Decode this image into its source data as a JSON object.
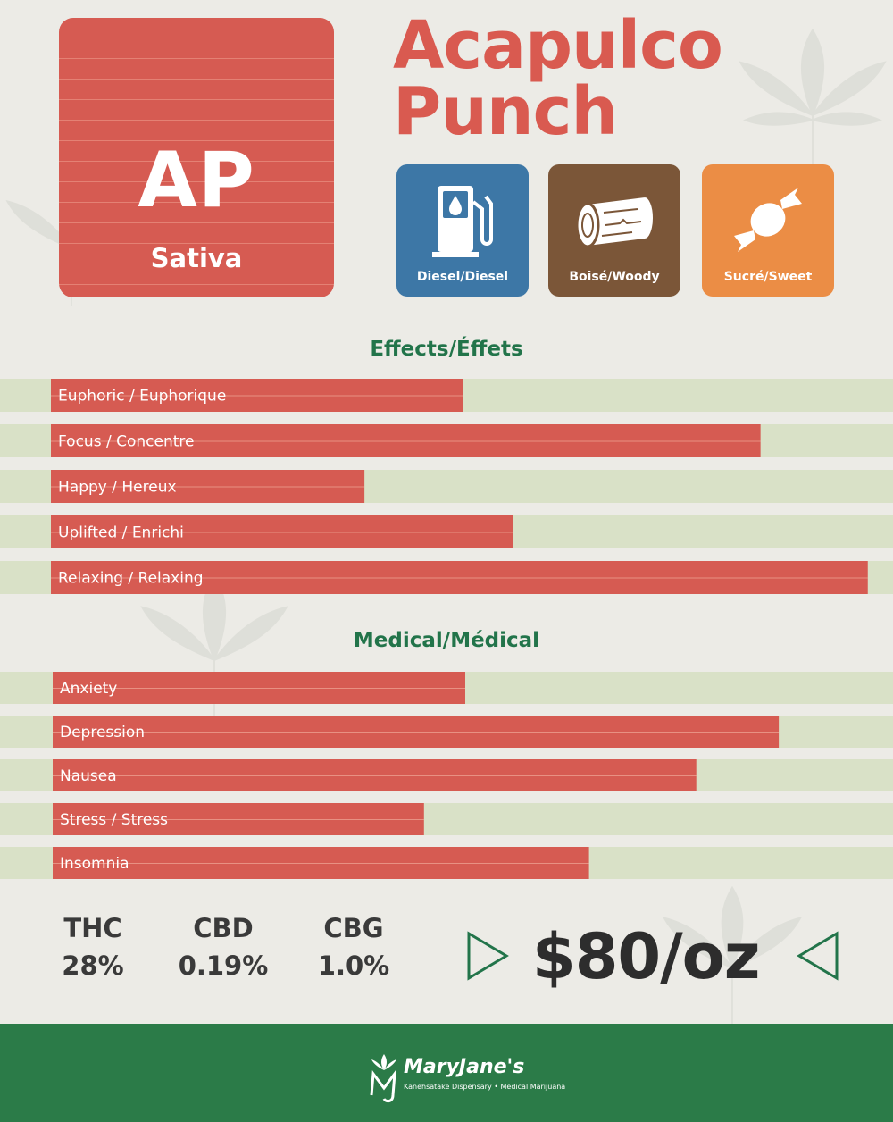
{
  "strain": {
    "code": "AP",
    "type": "Sativa",
    "name_line1": "Acapulco",
    "name_line2": "Punch"
  },
  "flavors": [
    {
      "label": "Diesel/Diesel",
      "icon": "fuel-pump-icon",
      "color": "#3d77a6"
    },
    {
      "label": "Boisé/Woody",
      "icon": "wood-log-icon",
      "color": "#7b5638"
    },
    {
      "label": "Sucré/Sweet",
      "icon": "candy-icon",
      "color": "#eb8d45"
    }
  ],
  "colors": {
    "accent_red": "#d65b52",
    "track_green": "#d9e1c7",
    "title_green": "#22744a",
    "footer_green": "#2b7b48"
  },
  "chart_data": [
    {
      "type": "bar",
      "orientation": "horizontal",
      "title": "Effects/Éffets",
      "categories": [
        "Euphoric / Euphorique",
        "Focus / Concentre",
        "Happy / Hereux",
        "Uplifted / Enrichi",
        "Relaxing / Relaxing"
      ],
      "values": [
        50,
        86,
        38,
        56,
        99
      ],
      "ylim": [
        0,
        100
      ],
      "grid": false
    },
    {
      "type": "bar",
      "orientation": "horizontal",
      "title": "Medical/Médical",
      "categories": [
        "Anxiety",
        "Depression",
        "Nausea",
        "Stress / Stress",
        "Insomnia"
      ],
      "values": [
        50,
        88,
        78,
        45,
        65
      ],
      "ylim": [
        0,
        100
      ],
      "grid": false
    }
  ],
  "stats": [
    {
      "label": "THC",
      "value": "28%"
    },
    {
      "label": "CBD",
      "value": "0.19%"
    },
    {
      "label": "CBG",
      "value": "1.0%"
    }
  ],
  "price": "$80/oz",
  "footer": {
    "brand": "MaryJane's",
    "tagline": "Kanehsatake Dispensary • Medical Marijuana",
    "logo_icon": "mj-cannabis-logo-icon"
  }
}
